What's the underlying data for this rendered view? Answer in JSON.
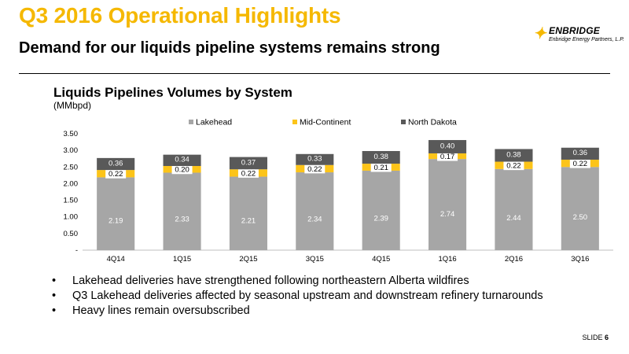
{
  "header": {
    "title": "Q3 2016 Operational Highlights",
    "subtitle": "Demand for our liquids pipeline systems remains strong"
  },
  "logo": {
    "brand": "ENBRIDGE",
    "tagline": "Enbridge Energy Partners, L.P."
  },
  "colors": {
    "accent": "#f5b800",
    "lakehead": "#a6a6a6",
    "mid_continent": "#fcc419",
    "north_dakota": "#595959"
  },
  "chart_data": {
    "type": "bar",
    "stacked": true,
    "title": "Liquids Pipelines Volumes by System",
    "subtitle": "(MMbpd)",
    "categories": [
      "4Q14",
      "1Q15",
      "2Q15",
      "3Q15",
      "4Q15",
      "1Q16",
      "2Q16",
      "3Q16"
    ],
    "series": [
      {
        "name": "Lakehead",
        "color": "#a6a6a6",
        "values": [
          2.19,
          2.33,
          2.21,
          2.34,
          2.39,
          2.74,
          2.44,
          2.5
        ]
      },
      {
        "name": "Mid-Continent",
        "color": "#fcc419",
        "values": [
          0.22,
          0.2,
          0.22,
          0.22,
          0.21,
          0.17,
          0.22,
          0.22
        ]
      },
      {
        "name": "North Dakota",
        "color": "#595959",
        "values": [
          0.36,
          0.34,
          0.37,
          0.33,
          0.38,
          0.4,
          0.38,
          0.36
        ]
      }
    ],
    "ylim": [
      0,
      3.5
    ],
    "yticks": [
      "-",
      "0.50",
      "1.00",
      "1.50",
      "2.00",
      "2.50",
      "3.00",
      "3.50"
    ],
    "legend_position": "top",
    "grid": false
  },
  "bullets": [
    "Lakehead deliveries have strengthened following northeastern Alberta wildfires",
    "Q3 Lakehead deliveries affected by seasonal upstream and downstream refinery turnarounds",
    "Heavy lines remain oversubscribed"
  ],
  "footer": {
    "slide_label": "SLIDE",
    "slide_number": "6"
  }
}
